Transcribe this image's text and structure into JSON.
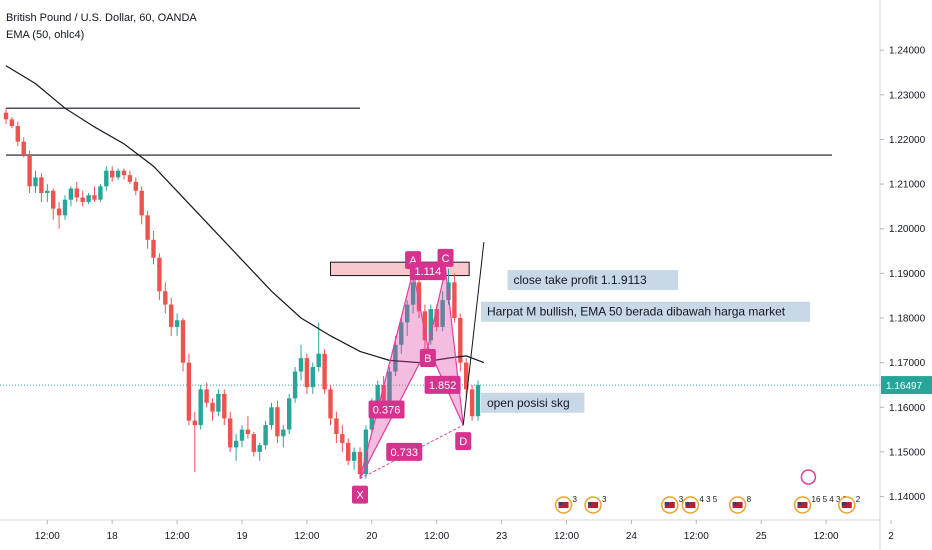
{
  "chart_data": {
    "type": "candlestick",
    "title": "British Pound / U.S. Dollar, 60, OANDA",
    "indicator": "EMA (50, ohlc4)",
    "ylim": [
      1.1325,
      1.249
    ],
    "y_ticks": [
      "1.24000",
      "1.23000",
      "1.22000",
      "1.21000",
      "1.20000",
      "1.19000",
      "1.18000",
      "1.17000",
      "1.16000",
      "1.15000",
      "1.14000"
    ],
    "x_ticks": [
      {
        "i": 7,
        "label": "12:00"
      },
      {
        "i": 18,
        "label": "18"
      },
      {
        "i": 29,
        "label": "12:00"
      },
      {
        "i": 40,
        "label": "19"
      },
      {
        "i": 51,
        "label": "12:00"
      },
      {
        "i": 62,
        "label": "20"
      },
      {
        "i": 73,
        "label": "12:00"
      },
      {
        "i": 84,
        "label": "23"
      },
      {
        "i": 95,
        "label": "12:00"
      },
      {
        "i": 106,
        "label": "24"
      },
      {
        "i": 117,
        "label": "12:00"
      },
      {
        "i": 128,
        "label": "25"
      },
      {
        "i": 139,
        "label": "12:00"
      },
      {
        "i": 150,
        "label": "2"
      }
    ],
    "last_price": "1.16497",
    "colors": {
      "up": "#26a69a",
      "down": "#ef5350",
      "ema": "#131722",
      "pattern": "#e040a0",
      "zone": "#f8c8cc",
      "price_tag": "#26a69a",
      "note_bg": "#c9d8e6"
    },
    "candles": [
      [
        1.226,
        1.227,
        1.2235,
        1.2245
      ],
      [
        1.2245,
        1.225,
        1.2225,
        1.223
      ],
      [
        1.223,
        1.224,
        1.2185,
        1.2195
      ],
      [
        1.2195,
        1.2205,
        1.216,
        1.2165
      ],
      [
        1.2165,
        1.2175,
        1.208,
        1.2095
      ],
      [
        1.2095,
        1.213,
        1.208,
        1.2115
      ],
      [
        1.2115,
        1.2125,
        1.206,
        1.208
      ],
      [
        1.208,
        1.21,
        1.206,
        1.2085
      ],
      [
        1.2085,
        1.209,
        1.202,
        1.2045
      ],
      [
        1.2045,
        1.206,
        1.2,
        1.203
      ],
      [
        1.203,
        1.2075,
        1.202,
        1.2065
      ],
      [
        1.2065,
        1.2095,
        1.205,
        1.209
      ],
      [
        1.209,
        1.2105,
        1.206,
        1.207
      ],
      [
        1.207,
        1.2085,
        1.205,
        1.206
      ],
      [
        1.206,
        1.208,
        1.2055,
        1.2075
      ],
      [
        1.2075,
        1.2095,
        1.206,
        1.2065
      ],
      [
        1.2065,
        1.21,
        1.206,
        1.2095
      ],
      [
        1.2095,
        1.214,
        1.2085,
        1.213
      ],
      [
        1.213,
        1.214,
        1.2105,
        1.2115
      ],
      [
        1.2115,
        1.2135,
        1.211,
        1.213
      ],
      [
        1.213,
        1.2135,
        1.211,
        1.212
      ],
      [
        1.212,
        1.213,
        1.21,
        1.2105
      ],
      [
        1.2105,
        1.2115,
        1.2075,
        1.2085
      ],
      [
        1.2085,
        1.2095,
        1.201,
        1.203
      ],
      [
        1.203,
        1.204,
        1.1955,
        1.1975
      ],
      [
        1.1975,
        1.1995,
        1.192,
        1.1935
      ],
      [
        1.1935,
        1.1945,
        1.184,
        1.186
      ],
      [
        1.186,
        1.188,
        1.181,
        1.183
      ],
      [
        1.183,
        1.1845,
        1.176,
        1.178
      ],
      [
        1.178,
        1.181,
        1.176,
        1.1795
      ],
      [
        1.1795,
        1.18,
        1.168,
        1.17
      ],
      [
        1.17,
        1.172,
        1.156,
        1.157
      ],
      [
        1.157,
        1.159,
        1.1455,
        1.156
      ],
      [
        1.156,
        1.165,
        1.155,
        1.164
      ],
      [
        1.164,
        1.1655,
        1.16,
        1.161
      ],
      [
        1.161,
        1.162,
        1.157,
        1.159
      ],
      [
        1.159,
        1.164,
        1.158,
        1.163
      ],
      [
        1.163,
        1.164,
        1.156,
        1.1575
      ],
      [
        1.1575,
        1.159,
        1.15,
        1.151
      ],
      [
        1.151,
        1.154,
        1.148,
        1.1525
      ],
      [
        1.1525,
        1.156,
        1.151,
        1.155
      ],
      [
        1.155,
        1.158,
        1.153,
        1.154
      ],
      [
        1.154,
        1.1545,
        1.149,
        1.15
      ],
      [
        1.15,
        1.152,
        1.148,
        1.1515
      ],
      [
        1.1515,
        1.157,
        1.1505,
        1.156
      ],
      [
        1.156,
        1.161,
        1.155,
        1.16
      ],
      [
        1.16,
        1.1615,
        1.152,
        1.1535
      ],
      [
        1.1535,
        1.156,
        1.151,
        1.155
      ],
      [
        1.155,
        1.163,
        1.154,
        1.162
      ],
      [
        1.162,
        1.169,
        1.161,
        1.168
      ],
      [
        1.168,
        1.174,
        1.166,
        1.171
      ],
      [
        1.171,
        1.172,
        1.163,
        1.1645
      ],
      [
        1.1645,
        1.17,
        1.163,
        1.169
      ],
      [
        1.169,
        1.179,
        1.168,
        1.172
      ],
      [
        1.172,
        1.173,
        1.163,
        1.164
      ],
      [
        1.164,
        1.165,
        1.156,
        1.1575
      ],
      [
        1.1575,
        1.159,
        1.152,
        1.154
      ],
      [
        1.154,
        1.156,
        1.15,
        1.152
      ],
      [
        1.152,
        1.153,
        1.147,
        1.148
      ],
      [
        1.148,
        1.151,
        1.146,
        1.15
      ],
      [
        1.15,
        1.151,
        1.144,
        1.145
      ],
      [
        1.145,
        1.156,
        1.144,
        1.155
      ],
      [
        1.155,
        1.162,
        1.154,
        1.161
      ],
      [
        1.161,
        1.166,
        1.159,
        1.165
      ],
      [
        1.165,
        1.167,
        1.16,
        1.161
      ],
      [
        1.161,
        1.169,
        1.16,
        1.168
      ],
      [
        1.168,
        1.176,
        1.167,
        1.174
      ],
      [
        1.174,
        1.18,
        1.172,
        1.179
      ],
      [
        1.179,
        1.184,
        1.176,
        1.183
      ],
      [
        1.183,
        1.19,
        1.181,
        1.188
      ],
      [
        1.188,
        1.191,
        1.18,
        1.1815
      ],
      [
        1.1815,
        1.183,
        1.173,
        1.175
      ],
      [
        1.175,
        1.183,
        1.174,
        1.182
      ],
      [
        1.182,
        1.183,
        1.177,
        1.178
      ],
      [
        1.178,
        1.186,
        1.177,
        1.184
      ],
      [
        1.184,
        1.191,
        1.183,
        1.188
      ],
      [
        1.188,
        1.19,
        1.179,
        1.18
      ],
      [
        1.18,
        1.181,
        1.168,
        1.17
      ],
      [
        1.17,
        1.171,
        1.162,
        1.164
      ],
      [
        1.164,
        1.165,
        1.157,
        1.158
      ],
      [
        1.158,
        1.166,
        1.157,
        1.165
      ]
    ],
    "ema": [
      [
        0,
        1.2365
      ],
      [
        5,
        1.2325
      ],
      [
        10,
        1.227
      ],
      [
        15,
        1.2228
      ],
      [
        20,
        1.219
      ],
      [
        25,
        1.214
      ],
      [
        30,
        1.207
      ],
      [
        35,
        1.2
      ],
      [
        40,
        1.193
      ],
      [
        45,
        1.186
      ],
      [
        50,
        1.18
      ],
      [
        55,
        1.176
      ],
      [
        60,
        1.1725
      ],
      [
        65,
        1.1705
      ],
      [
        70,
        1.17
      ],
      [
        75,
        1.171
      ],
      [
        78,
        1.1715
      ],
      [
        81,
        1.17
      ]
    ],
    "h_lines": [
      {
        "price": 1.227,
        "i_from": 0,
        "i_to": 60
      },
      {
        "price": 1.2165,
        "i_from": 0,
        "i_to": 140
      }
    ],
    "zone": {
      "price_top": 1.1925,
      "price_bottom": 1.1895,
      "i_from": 55,
      "i_to": 78.5
    },
    "pattern_points": [
      {
        "name": "X",
        "i": 60,
        "price": 1.144
      },
      {
        "name": "A",
        "i": 69,
        "price": 1.1905
      },
      {
        "name": "B",
        "i": 71.5,
        "price": 1.1735
      },
      {
        "name": "C",
        "i": 74.5,
        "price": 1.191
      },
      {
        "name": "D",
        "i": 77.5,
        "price": 1.156
      }
    ],
    "ratios": [
      {
        "text": "0.376",
        "i": 64.5,
        "price": 1.1595
      },
      {
        "text": "0.733",
        "i": 67.5,
        "price": 1.15
      },
      {
        "text": "1.852",
        "i": 74,
        "price": 1.165
      },
      {
        "text": "1.114",
        "i": 71.5,
        "price": 1.1905
      }
    ],
    "target_line": {
      "i_from": 77.5,
      "price_from": 1.156,
      "i_to": 81,
      "price_to": 1.197
    },
    "notes": [
      {
        "text": "close take profit 1.1.9113",
        "i": 85,
        "price": 1.1885
      },
      {
        "text": "Harpat M bullish, EMA 50 berada dibawah harga market",
        "i": 80.5,
        "price": 1.1814
      },
      {
        "text": "open posisi skg",
        "i": 80.5,
        "price": 1.161
      }
    ],
    "events": [
      {
        "i": 94.5,
        "count": "3"
      },
      {
        "i": 99.5,
        "count": "3"
      },
      {
        "i": 112.5,
        "count": "3"
      },
      {
        "i": 116,
        "count": "4 3 5"
      },
      {
        "i": 124,
        "count": "8"
      },
      {
        "i": 135,
        "count": "16 5 4 3 2"
      },
      {
        "i": 142.5,
        "count": "2"
      }
    ]
  }
}
